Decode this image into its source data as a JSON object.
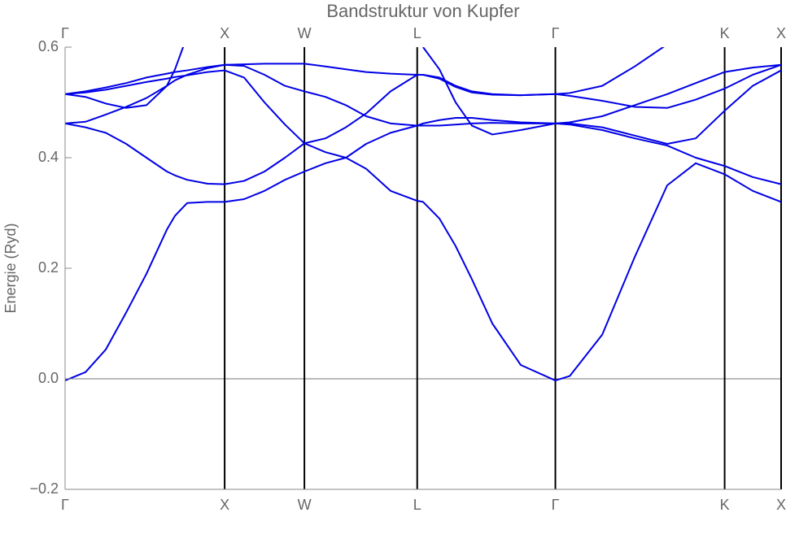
{
  "chart_data": {
    "type": "line",
    "title": "Bandstruktur von Kupfer",
    "ylabel": "Energie (Ryd)",
    "xlim": [
      0,
      4.488
    ],
    "ylim": [
      -0.2,
      0.6
    ],
    "xticks": [
      {
        "value": 0,
        "label": "Γ"
      },
      {
        "value": 1,
        "label": "X"
      },
      {
        "value": 1.5,
        "label": "W"
      },
      {
        "value": 2.207,
        "label": "L"
      },
      {
        "value": 3.073,
        "label": "Γ"
      },
      {
        "value": 4.134,
        "label": "K"
      },
      {
        "value": 4.488,
        "label": "X"
      }
    ],
    "yticks": [
      {
        "value": -0.2,
        "label": "−0.2"
      },
      {
        "value": 0,
        "label": "0.0"
      },
      0.2,
      0.4,
      0.6
    ],
    "xgrid": true,
    "x": [
      0,
      0.128,
      0.255,
      0.383,
      0.51,
      0.638,
      0.689,
      0.765,
      0.893,
      1,
      1.122,
      1.25,
      1.378,
      1.5,
      1.632,
      1.76,
      1.887,
      2.04,
      2.207,
      2.244,
      2.346,
      2.448,
      2.55,
      2.678,
      2.856,
      3.073,
      3.163,
      3.367,
      3.57,
      3.774,
      3.953,
      4.134,
      4.31,
      4.488
    ],
    "series": [
      {
        "color": "#0000e6",
        "values": [
          -0.003,
          0.012,
          0.053,
          0.12,
          0.19,
          0.27,
          0.295,
          0.318,
          0.32,
          0.32,
          0.325,
          0.34,
          0.36,
          0.375,
          0.39,
          0.4,
          0.38,
          0.34,
          0.322,
          0.32,
          0.29,
          0.24,
          0.18,
          0.1,
          0.025,
          -0.003,
          0.005,
          0.08,
          0.22,
          0.35,
          0.39,
          0.37,
          0.34,
          0.32
        ]
      },
      {
        "color": "#0000e6",
        "values": [
          0.462,
          0.455,
          0.445,
          0.425,
          0.4,
          0.375,
          0.368,
          0.36,
          0.353,
          0.352,
          0.358,
          0.375,
          0.4,
          0.426,
          0.41,
          0.4,
          0.425,
          0.445,
          0.458,
          0.462,
          0.468,
          0.472,
          0.472,
          0.468,
          0.464,
          0.462,
          0.46,
          0.45,
          0.435,
          0.422,
          0.4,
          0.385,
          0.365,
          0.352
        ]
      },
      {
        "color": "#0000e6",
        "values": [
          0.462,
          0.465,
          0.478,
          0.492,
          0.508,
          0.53,
          0.54,
          0.55,
          0.562,
          0.568,
          0.569,
          0.57,
          0.57,
          0.57,
          0.565,
          0.56,
          0.555,
          0.552,
          0.55,
          0.55,
          0.545,
          0.53,
          0.52,
          0.515,
          0.513,
          0.515,
          0.517,
          0.53,
          0.565,
          0.605,
          null,
          null,
          null,
          null
        ]
      },
      {
        "color": "#0000e6",
        "values": [
          0.515,
          0.518,
          0.523,
          0.53,
          0.537,
          0.543,
          0.546,
          0.549,
          0.555,
          0.558,
          0.545,
          0.5,
          0.46,
          0.426,
          0.435,
          0.455,
          0.48,
          0.52,
          0.55,
          0.55,
          0.543,
          0.528,
          0.518,
          0.514,
          0.513,
          0.515,
          0.512,
          0.503,
          0.492,
          0.49,
          0.505,
          0.525,
          0.55,
          0.568
        ]
      },
      {
        "color": "#0000e6",
        "values": [
          0.515,
          0.51,
          0.498,
          0.49,
          0.495,
          0.53,
          0.56,
          0.62,
          null,
          null,
          null,
          null,
          null,
          null,
          null,
          null,
          null,
          null,
          null,
          0.6,
          0.56,
          0.5,
          0.458,
          0.442,
          0.45,
          0.462,
          0.464,
          0.475,
          0.495,
          0.515,
          0.535,
          0.555,
          0.563,
          0.568
        ]
      },
      {
        "color": "#0000e6",
        "values": [
          0.515,
          0.52,
          0.527,
          0.535,
          0.545,
          0.552,
          0.555,
          0.558,
          0.564,
          0.568,
          0.566,
          0.55,
          0.53,
          0.52,
          0.51,
          0.495,
          0.475,
          0.462,
          0.458,
          0.458,
          0.458,
          0.46,
          0.462,
          0.463,
          0.462,
          0.462,
          0.462,
          0.455,
          0.44,
          0.425,
          0.435,
          0.485,
          0.53,
          0.558
        ]
      }
    ]
  }
}
